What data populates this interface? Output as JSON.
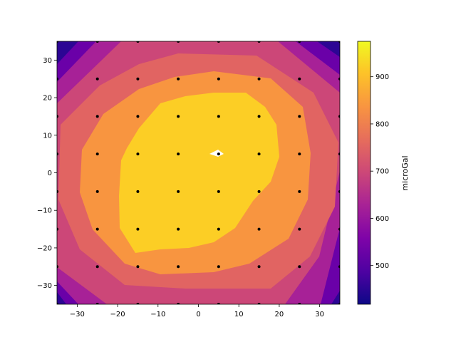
{
  "chart_data": {
    "type": "contour",
    "x_ticks": [
      -30,
      -20,
      -10,
      0,
      10,
      20,
      30
    ],
    "y_ticks": [
      -30,
      -20,
      -10,
      0,
      10,
      20,
      30
    ],
    "xlim": [
      -35,
      35
    ],
    "ylim": [
      -35,
      35
    ],
    "xlabel": "",
    "ylabel": "",
    "colorbar": {
      "label": "microGal",
      "range": [
        418,
        975
      ],
      "ticks": [
        500,
        600,
        700,
        800,
        900
      ]
    },
    "levels": [
      {
        "min": 418,
        "max": 530,
        "color": "#2c0594"
      },
      {
        "min": 530,
        "max": 640,
        "color": "#6a00a8"
      },
      {
        "min": 640,
        "max": 700,
        "color": "#a72197"
      },
      {
        "min": 700,
        "max": 750,
        "color": "#cc4778"
      },
      {
        "min": 750,
        "max": 800,
        "color": "#e16462"
      },
      {
        "min": 800,
        "max": 870,
        "color": "#f89540"
      },
      {
        "min": 870,
        "max": 975,
        "color": "#fcce25"
      }
    ],
    "peak": {
      "x": 5,
      "y": 5,
      "color": "#ffffff"
    },
    "station_points": {
      "x": [
        -35,
        -25,
        -15,
        -5,
        5,
        15,
        25,
        35
      ],
      "y": [
        35,
        25,
        15,
        5,
        -5,
        -15,
        -25,
        -35
      ],
      "color": "#000000"
    }
  }
}
